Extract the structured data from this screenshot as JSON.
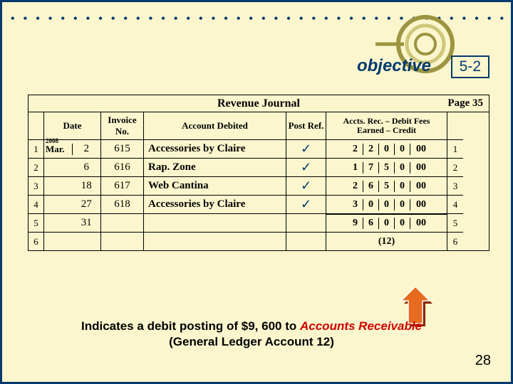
{
  "section_number": "5-2",
  "logo_text": "objective",
  "slide_number": "28",
  "journal": {
    "title": "Revenue Journal",
    "page_label": "Page 35",
    "headers": {
      "date": "Date",
      "invoice": "Invoice No.",
      "account": "Account Debited",
      "post_ref": "Post Ref.",
      "amount": "Accts. Rec. – Debit Fees Earned – Credit"
    },
    "year": "2008",
    "rows": [
      {
        "n": "1",
        "month": "Mar.",
        "day": "2",
        "inv": "615",
        "acct": "Accessories by Claire",
        "post": "✓",
        "d": [
          "",
          "2",
          "2",
          "0",
          "0",
          "00"
        ]
      },
      {
        "n": "2",
        "month": "",
        "day": "6",
        "inv": "616",
        "acct": "Rap. Zone",
        "post": "✓",
        "d": [
          "",
          "1",
          "7",
          "5",
          "0",
          "00"
        ]
      },
      {
        "n": "3",
        "month": "",
        "day": "18",
        "inv": "617",
        "acct": "Web Cantina",
        "post": "✓",
        "d": [
          "",
          "2",
          "6",
          "5",
          "0",
          "00"
        ]
      },
      {
        "n": "4",
        "month": "",
        "day": "27",
        "inv": "618",
        "acct": "Accessories by Claire",
        "post": "✓",
        "d": [
          "",
          "3",
          "0",
          "0",
          "0",
          "00"
        ]
      },
      {
        "n": "5",
        "month": "",
        "day": "31",
        "inv": "",
        "acct": "",
        "post": "",
        "d": [
          "",
          "9",
          "6",
          "0",
          "0",
          "00"
        ]
      },
      {
        "n": "6",
        "month": "",
        "day": "",
        "inv": "",
        "acct": "",
        "post": "",
        "ledger": "(12)"
      }
    ]
  },
  "explanation": {
    "pre": "Indicates a debit posting of $9, 600 to ",
    "em": "Accounts Receivable",
    "post": " (General Ledger Account 12)"
  },
  "colors": {
    "bg": "#fbf6cd",
    "border": "#003a6f",
    "accent_red": "#d00000",
    "arrow_fill": "#e66a1f",
    "arrow_shadow": "#8a2a00"
  }
}
